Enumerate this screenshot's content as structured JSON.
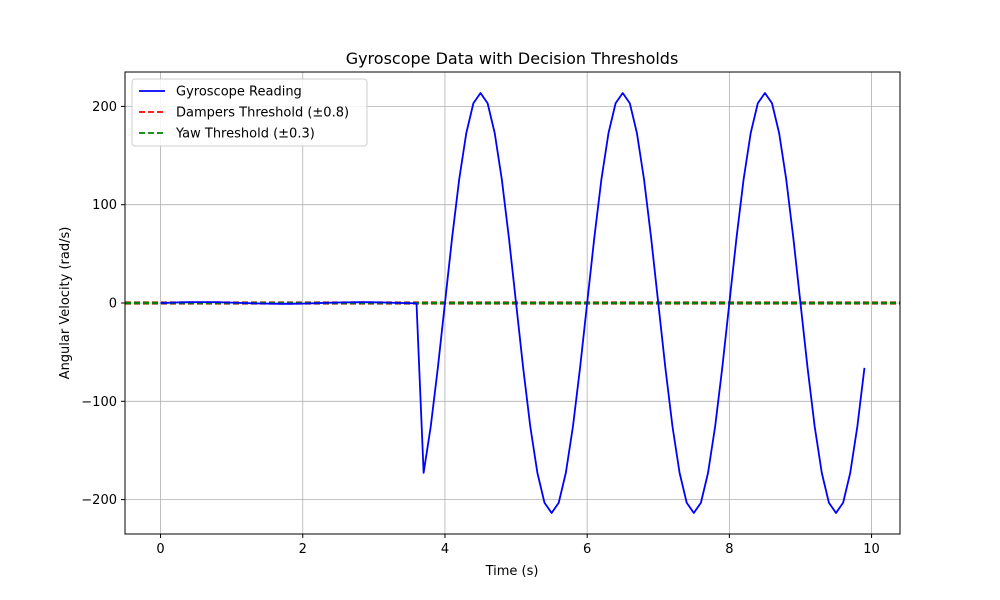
{
  "chart_data": {
    "type": "line",
    "title": "Gyroscope Data with Decision Thresholds",
    "xlabel": "Time (s)",
    "ylabel": "Angular Velocity (rad/s)",
    "xlim": [
      -0.5,
      10.4
    ],
    "ylim": [
      -235,
      235
    ],
    "xticks": [
      0,
      2,
      4,
      6,
      8,
      10
    ],
    "yticks": [
      -200,
      -100,
      0,
      100,
      200
    ],
    "xtick_labels": [
      "0",
      "2",
      "4",
      "6",
      "8",
      "10"
    ],
    "ytick_labels": [
      "−200",
      "−100",
      "0",
      "100",
      "200"
    ],
    "grid": true,
    "legend_position": "upper-left",
    "series": [
      {
        "name": "Gyroscope Reading",
        "color": "#0000ff",
        "style": "solid",
        "x": [
          0.0,
          0.1,
          0.2,
          0.3,
          0.4,
          0.5,
          0.6,
          0.7,
          0.8,
          0.9,
          1.0,
          1.1,
          1.2,
          1.3,
          1.4,
          1.5,
          1.6,
          1.7,
          1.8,
          1.9,
          2.0,
          2.1,
          2.2,
          2.3,
          2.4,
          2.5,
          2.6,
          2.7,
          2.8,
          2.9,
          3.0,
          3.1,
          3.2,
          3.3,
          3.4,
          3.5,
          3.6,
          3.7,
          3.8,
          3.9,
          4.0,
          4.1,
          4.2,
          4.3,
          4.4,
          4.5,
          4.6,
          4.7,
          4.8,
          4.9,
          5.0,
          5.1,
          5.2,
          5.3,
          5.4,
          5.5,
          5.6,
          5.7,
          5.8,
          5.9,
          6.0,
          6.1,
          6.2,
          6.3,
          6.4,
          6.5,
          6.6,
          6.7,
          6.8,
          6.9,
          7.0,
          7.1,
          7.2,
          7.3,
          7.4,
          7.5,
          7.6,
          7.7,
          7.8,
          7.9,
          8.0,
          8.1,
          8.2,
          8.3,
          8.4,
          8.5,
          8.6,
          8.7,
          8.8,
          8.9,
          9.0,
          9.1,
          9.2,
          9.3,
          9.4,
          9.5,
          9.6,
          9.7,
          9.8,
          9.9
        ],
        "y": [
          0.0,
          0.2,
          0.5,
          0.7,
          0.8,
          0.9,
          0.9,
          0.9,
          0.8,
          0.6,
          0.4,
          0.1,
          -0.1,
          -0.3,
          -0.5,
          -0.6,
          -0.7,
          -0.8,
          -0.8,
          -0.7,
          -0.6,
          -0.4,
          -0.2,
          0.1,
          0.3,
          0.5,
          0.6,
          0.7,
          0.8,
          0.8,
          0.7,
          0.6,
          0.4,
          0.2,
          0.0,
          -0.2,
          -0.4,
          -172.8,
          -125.6,
          -66.0,
          0.0,
          66.0,
          125.6,
          172.8,
          203.2,
          213.6,
          203.2,
          172.8,
          125.6,
          66.0,
          0.0,
          -66.0,
          -125.6,
          -172.8,
          -203.2,
          -213.6,
          -203.2,
          -172.8,
          -125.6,
          -66.0,
          0.0,
          66.0,
          125.6,
          172.8,
          203.2,
          213.6,
          203.2,
          172.8,
          125.6,
          66.0,
          0.0,
          -66.0,
          -125.6,
          -172.8,
          -203.2,
          -213.6,
          -203.2,
          -172.8,
          -125.6,
          -66.0,
          0.0,
          66.0,
          125.6,
          172.8,
          203.2,
          213.6,
          203.2,
          172.8,
          125.6,
          66.0,
          0.0,
          -66.0,
          -125.6,
          -172.8,
          -203.2,
          -213.6,
          -203.2,
          -172.8,
          -125.6,
          -66.0
        ]
      },
      {
        "name": "Dampers Threshold (±0.8)",
        "color": "#ff0000",
        "style": "dashed",
        "hlines": [
          0.8,
          -0.8
        ]
      },
      {
        "name": "Yaw Threshold (±0.3)",
        "color": "#008000",
        "style": "dashed",
        "hlines": [
          0.3,
          -0.3
        ]
      }
    ]
  }
}
